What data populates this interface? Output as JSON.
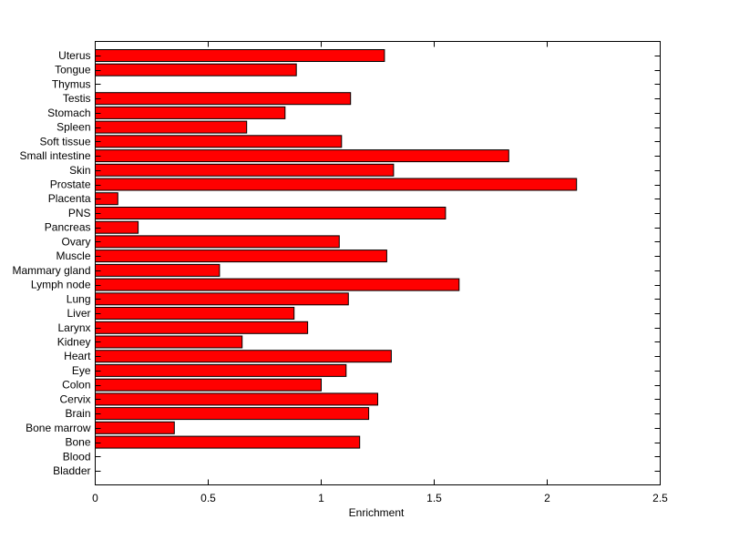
{
  "chart_data": {
    "type": "bar",
    "orientation": "horizontal",
    "title": "",
    "xlabel": "Enrichment",
    "ylabel": "",
    "xlim": [
      0,
      2.5
    ],
    "xticks": [
      0,
      0.5,
      1,
      1.5,
      2,
      2.5
    ],
    "xtick_labels": [
      "0",
      "0.5",
      "1",
      "1.5",
      "2",
      "2.5"
    ],
    "grid": false,
    "bar_color": "#ff0000",
    "categories": [
      "Uterus",
      "Tongue",
      "Thymus",
      "Testis",
      "Stomach",
      "Spleen",
      "Soft tissue",
      "Small intestine",
      "Skin",
      "Prostate",
      "Placenta",
      "PNS",
      "Pancreas",
      "Ovary",
      "Muscle",
      "Mammary gland",
      "Lymph node",
      "Lung",
      "Liver",
      "Larynx",
      "Kidney",
      "Heart",
      "Eye",
      "Colon",
      "Cervix",
      "Brain",
      "Bone marrow",
      "Bone",
      "Blood",
      "Bladder"
    ],
    "values": [
      1.28,
      0.89,
      0,
      1.13,
      0.84,
      0.67,
      1.09,
      1.83,
      1.32,
      2.13,
      0.1,
      1.55,
      0.19,
      1.08,
      1.29,
      0.55,
      1.61,
      1.12,
      0.88,
      0.94,
      0.65,
      1.31,
      1.11,
      1.0,
      1.25,
      1.21,
      0.35,
      1.17,
      0,
      0
    ]
  }
}
